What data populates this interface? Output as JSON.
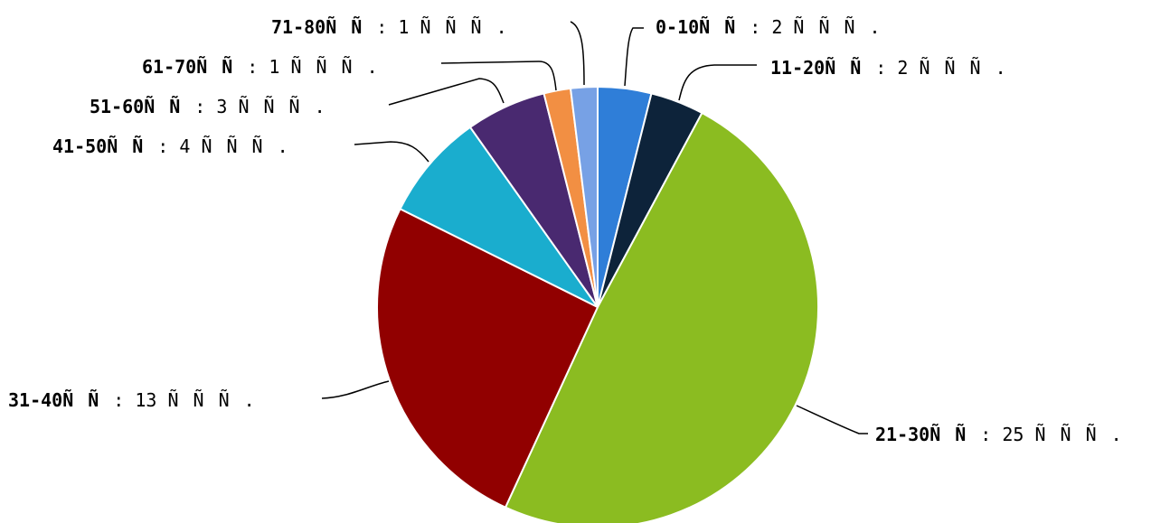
{
  "chart_data": {
    "type": "pie",
    "title": "",
    "unit_suffix": "ÑÑÑ.",
    "separator": ": ",
    "slices": [
      {
        "label": "0-10ÑÑ",
        "value": 2,
        "value_text": "2",
        "color": "#2f7ed8"
      },
      {
        "label": "11-20ÑÑ",
        "value": 2,
        "value_text": "2",
        "color": "#0d233a"
      },
      {
        "label": "21-30ÑÑ",
        "value": 25,
        "value_text": "25",
        "color": "#8bbc21"
      },
      {
        "label": "31-40ÑÑ",
        "value": 13,
        "value_text": "13",
        "color": "#910000"
      },
      {
        "label": "41-50ÑÑ",
        "value": 4,
        "value_text": "4",
        "color": "#1aadce"
      },
      {
        "label": "51-60ÑÑ",
        "value": 3,
        "value_text": "3",
        "color": "#492970"
      },
      {
        "label": "61-70ÑÑ",
        "value": 1,
        "value_text": "1",
        "color": "#f28f43"
      },
      {
        "label": "71-80ÑÑ",
        "value": 1,
        "value_text": "1",
        "color": "#77a1e5"
      }
    ],
    "start_angle": "12 o'clock",
    "direction": "clockwise",
    "legend": "none",
    "grid": false
  }
}
